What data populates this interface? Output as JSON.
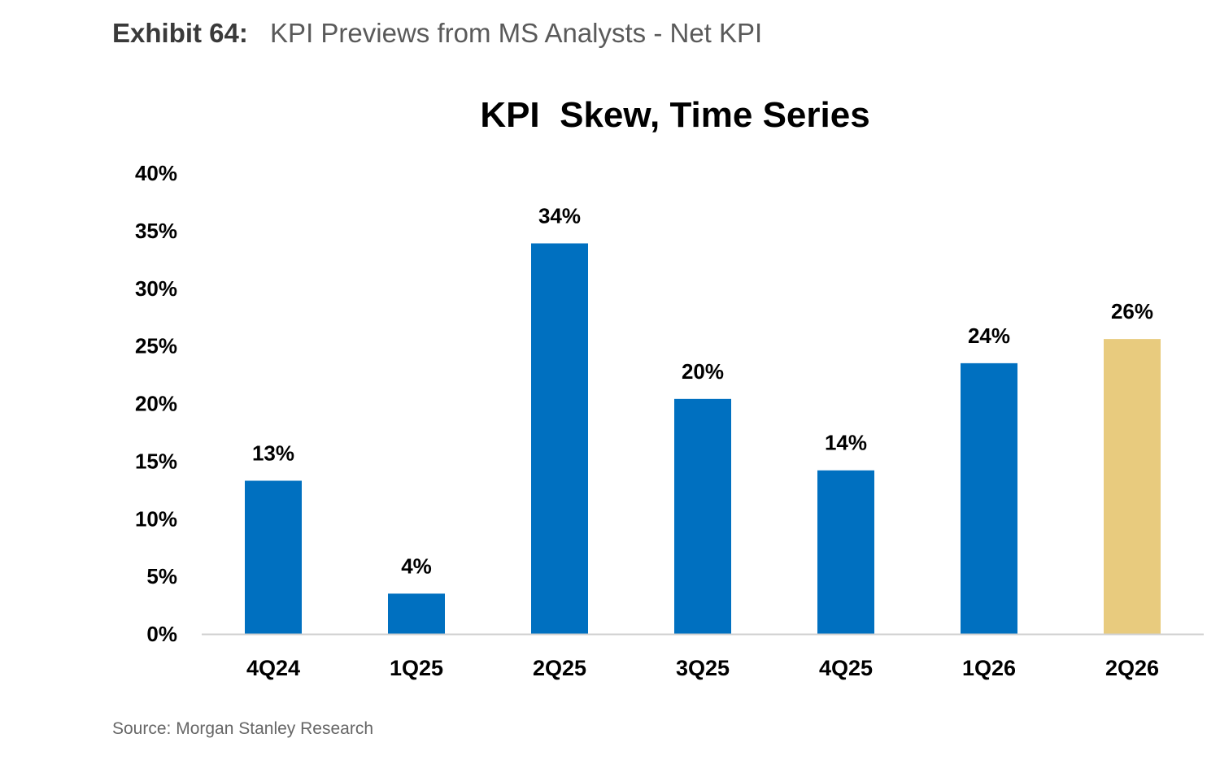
{
  "exhibit": {
    "label": "Exhibit 64:",
    "title": "KPI Previews from MS Analysts - Net KPI"
  },
  "source": "Source: Morgan Stanley Research",
  "chart_data": {
    "type": "bar",
    "title": "KPI  Skew, Time Series",
    "xlabel": "",
    "ylabel": "",
    "categories": [
      "4Q24",
      "1Q25",
      "2Q25",
      "3Q25",
      "4Q25",
      "1Q26",
      "2Q26"
    ],
    "values": [
      13.3,
      3.5,
      33.9,
      20.4,
      14.2,
      23.5,
      25.6
    ],
    "data_labels": [
      "13%",
      "4%",
      "34%",
      "20%",
      "14%",
      "24%",
      "26%"
    ],
    "bar_colors": [
      "#0070c0",
      "#0070c0",
      "#0070c0",
      "#0070c0",
      "#0070c0",
      "#0070c0",
      "#e8cb7e"
    ],
    "ylim": [
      0,
      40
    ],
    "yticks": [
      0,
      5,
      10,
      15,
      20,
      25,
      30,
      35,
      40
    ],
    "ytick_labels": [
      "0%",
      "5%",
      "10%",
      "15%",
      "20%",
      "25%",
      "30%",
      "35%",
      "40%"
    ],
    "grid": false,
    "legend": "none"
  }
}
